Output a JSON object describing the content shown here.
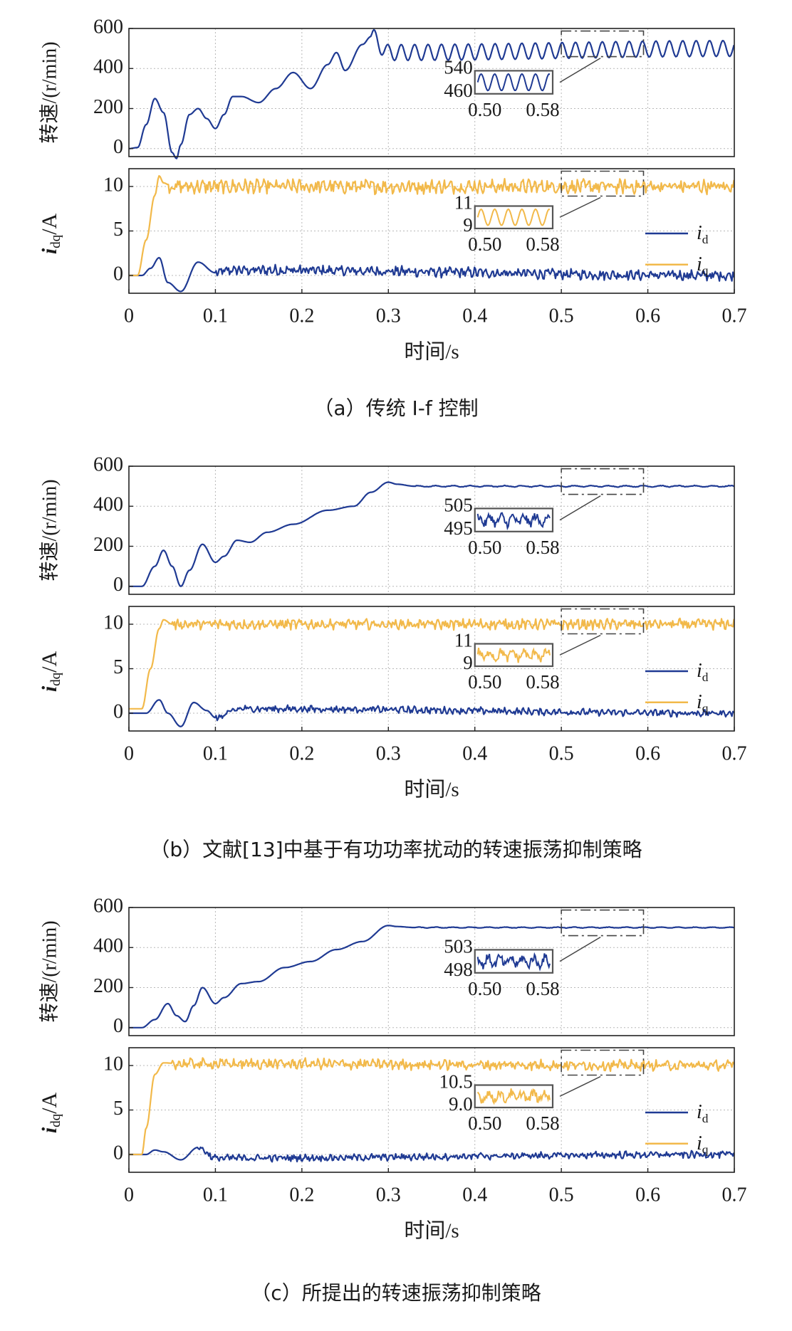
{
  "colors": {
    "id": "#1f3a93",
    "iq": "#f2b94a",
    "axis": "#222222",
    "grid": "#b8b8b8"
  },
  "legend": {
    "id_base": "i",
    "id_sub": "d",
    "iq_base": "i",
    "iq_sub": "q"
  },
  "chart_data": [
    {
      "type": "line",
      "panel": "a",
      "caption": "（a）传统 I-f 控制",
      "xlabel": "时间/s",
      "xlim": [
        0,
        0.7
      ],
      "xticks": [
        "0",
        "0.1",
        "0.2",
        "0.3",
        "0.4",
        "0.5",
        "0.6",
        "0.7"
      ],
      "grid": true,
      "speed": {
        "ylabel": "转速/(r/min)",
        "ylim": [
          -40,
          600
        ],
        "yticks": [
          "0",
          "200",
          "400",
          "600"
        ],
        "series": [
          {
            "name": "",
            "color": "#1f3a93",
            "x": [
              0,
              0.01,
              0.02,
              0.03,
              0.04,
              0.05,
              0.055,
              0.06,
              0.07,
              0.08,
              0.09,
              0.1,
              0.11,
              0.12,
              0.13,
              0.15,
              0.17,
              0.19,
              0.21,
              0.23,
              0.24,
              0.25,
              0.27,
              0.28,
              0.3,
              0.7
            ],
            "y": [
              0,
              5,
              120,
              250,
              180,
              -20,
              -50,
              20,
              170,
              200,
              150,
              100,
              170,
              260,
              260,
              230,
              300,
              380,
              300,
              420,
              480,
              390,
              520,
              560,
              480,
              500
            ],
            "osc": {
              "from": 0.28,
              "amp": 40,
              "period": 0.0155
            }
          }
        ]
      },
      "speed_inset": {
        "ylabels": [
          "540",
          "460"
        ],
        "xlabels": [
          "0.50",
          "0.58"
        ]
      },
      "current": {
        "ylabel_base": "i",
        "ylabel_sub": "dq",
        "ylabel_unit": "/A",
        "ylim": [
          -2,
          12
        ],
        "yticks": [
          "0",
          "5",
          "10"
        ],
        "series": [
          {
            "name": "id",
            "color": "#1f3a93",
            "x": [
              0,
              0.015,
              0.025,
              0.035,
              0.045,
              0.06,
              0.08,
              0.1,
              0.12,
              0.7
            ],
            "y": [
              0,
              0,
              0.8,
              2.0,
              -0.8,
              -1.8,
              1.5,
              0.3,
              0.6,
              0
            ],
            "noise": 0.45,
            "noise_from": 0.1
          },
          {
            "name": "iq",
            "color": "#f2b94a",
            "x": [
              0,
              0.01,
              0.02,
              0.03,
              0.035,
              0.04,
              0.05,
              0.07,
              0.7
            ],
            "y": [
              0,
              0,
              4,
              9,
              11.2,
              10.4,
              10,
              10,
              10
            ],
            "noise": 0.6,
            "noise_from": 0.045
          }
        ]
      },
      "current_inset": {
        "ylabels": [
          "11",
          "9"
        ],
        "xlabels": [
          "0.50",
          "0.58"
        ]
      }
    },
    {
      "type": "line",
      "panel": "b",
      "caption": "（b）文献[13]中基于有功功率扰动的转速振荡抑制策略",
      "xlabel": "时间/s",
      "xlim": [
        0,
        0.7
      ],
      "xticks": [
        "0",
        "0.1",
        "0.2",
        "0.3",
        "0.4",
        "0.5",
        "0.6",
        "0.7"
      ],
      "grid": true,
      "speed": {
        "ylabel": "转速/(r/min)",
        "ylim": [
          -40,
          600
        ],
        "yticks": [
          "0",
          "200",
          "400",
          "600"
        ],
        "series": [
          {
            "name": "",
            "color": "#1f3a93",
            "x": [
              0,
              0.015,
              0.03,
              0.04,
              0.05,
              0.06,
              0.07,
              0.085,
              0.1,
              0.11,
              0.125,
              0.14,
              0.16,
              0.19,
              0.23,
              0.26,
              0.28,
              0.3,
              0.31,
              0.33,
              0.7
            ],
            "y": [
              0,
              0,
              100,
              180,
              100,
              0,
              80,
              210,
              120,
              150,
              230,
              220,
              270,
              310,
              380,
              400,
              470,
              520,
              510,
              500,
              500
            ],
            "osc": {
              "from": 0.33,
              "amp": 3,
              "period": 0.02
            }
          }
        ]
      },
      "speed_inset": {
        "ylabels": [
          "505",
          "495"
        ],
        "xlabels": [
          "0.50",
          "0.58"
        ]
      },
      "current": {
        "ylabel_base": "i",
        "ylabel_sub": "dq",
        "ylabel_unit": "/A",
        "ylim": [
          -2,
          12
        ],
        "yticks": [
          "0",
          "5",
          "10"
        ],
        "series": [
          {
            "name": "id",
            "color": "#1f3a93",
            "x": [
              0,
              0.02,
              0.035,
              0.045,
              0.06,
              0.075,
              0.09,
              0.1,
              0.13,
              0.7
            ],
            "y": [
              0,
              0,
              1.5,
              0,
              -1.5,
              1.2,
              0.3,
              -0.5,
              0.5,
              0
            ],
            "noise": 0.3,
            "noise_from": 0.1
          },
          {
            "name": "iq",
            "color": "#f2b94a",
            "x": [
              0,
              0.015,
              0.025,
              0.035,
              0.04,
              0.05,
              0.7
            ],
            "y": [
              0.5,
              0.5,
              5,
              9.5,
              10.5,
              10,
              10
            ],
            "noise": 0.45,
            "noise_from": 0.05
          }
        ]
      },
      "current_inset": {
        "ylabels": [
          "11",
          "9"
        ],
        "xlabels": [
          "0.50",
          "0.58"
        ]
      }
    },
    {
      "type": "line",
      "panel": "c",
      "caption": "（c）所提出的转速振荡抑制策略",
      "xlabel": "时间/s",
      "xlim": [
        0,
        0.7
      ],
      "xticks": [
        "0",
        "0.1",
        "0.2",
        "0.3",
        "0.4",
        "0.5",
        "0.6",
        "0.7"
      ],
      "grid": true,
      "speed": {
        "ylabel": "转速/(r/min)",
        "ylim": [
          -40,
          600
        ],
        "yticks": [
          "0",
          "200",
          "400",
          "600"
        ],
        "series": [
          {
            "name": "",
            "color": "#1f3a93",
            "x": [
              0,
              0.015,
              0.03,
              0.045,
              0.055,
              0.065,
              0.075,
              0.085,
              0.1,
              0.11,
              0.13,
              0.15,
              0.18,
              0.21,
              0.24,
              0.27,
              0.3,
              0.31,
              0.33,
              0.7
            ],
            "y": [
              0,
              0,
              40,
              120,
              60,
              30,
              110,
              200,
              120,
              150,
              220,
              230,
              300,
              330,
              390,
              430,
              510,
              505,
              500,
              500
            ],
            "osc": {
              "from": 0.33,
              "amp": 2,
              "period": 0.02
            }
          }
        ]
      },
      "speed_inset": {
        "ylabels": [
          "503",
          "498"
        ],
        "xlabels": [
          "0.50",
          "0.58"
        ]
      },
      "current": {
        "ylabel_base": "i",
        "ylabel_sub": "dq",
        "ylabel_unit": "/A",
        "ylim": [
          -2,
          12
        ],
        "yticks": [
          "0",
          "5",
          "10"
        ],
        "series": [
          {
            "name": "id",
            "color": "#1f3a93",
            "x": [
              0,
              0.02,
              0.03,
              0.04,
              0.06,
              0.08,
              0.1,
              0.7
            ],
            "y": [
              0,
              0,
              0.5,
              0.3,
              -0.6,
              0.8,
              -0.4,
              0
            ],
            "noise": 0.3,
            "noise_from": 0.08
          },
          {
            "name": "iq",
            "color": "#f2b94a",
            "x": [
              0,
              0.015,
              0.02,
              0.03,
              0.04,
              0.06,
              0.7
            ],
            "y": [
              0,
              0,
              3,
              9,
              10.3,
              10.2,
              10
            ],
            "noise": 0.45,
            "noise_from": 0.05
          }
        ]
      },
      "current_inset": {
        "ylabels": [
          "10.5",
          "9.0"
        ],
        "xlabels": [
          "0.50",
          "0.58"
        ]
      }
    }
  ]
}
